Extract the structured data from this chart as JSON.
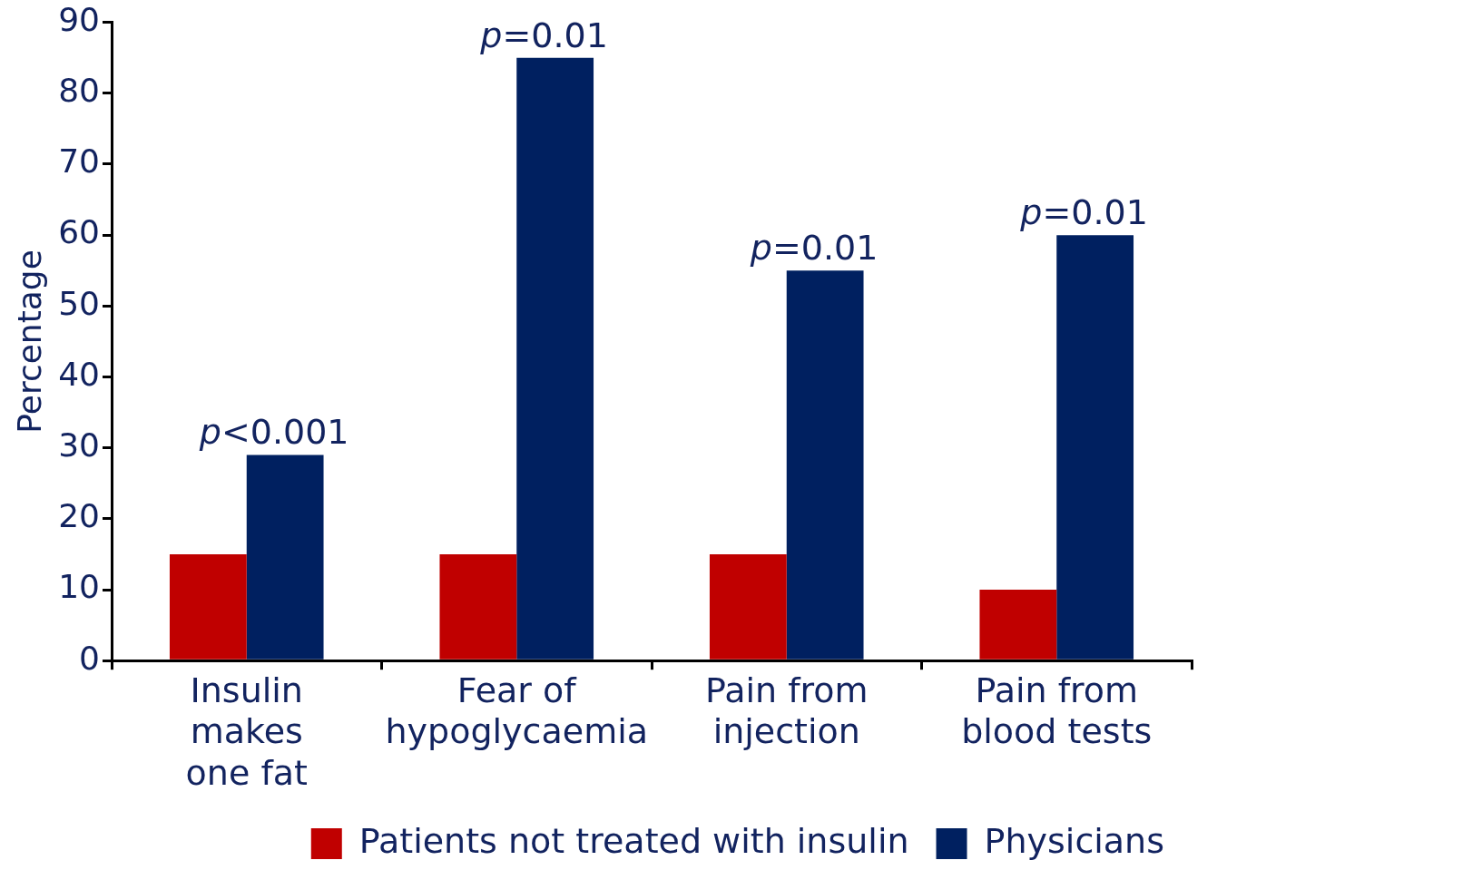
{
  "chart_data": {
    "type": "bar",
    "ylabel": "Percentage",
    "categories": [
      "Insulin\nmakes\none fat",
      "Fear of\nhypoglycaemia",
      "Pain from\ninjection",
      "Pain from\nblood tests"
    ],
    "series": [
      {
        "name": "Patients not treated with insulin",
        "color": "#c00000",
        "values": [
          15,
          15,
          15,
          10
        ]
      },
      {
        "name": "Physicians",
        "color": "#002060",
        "values": [
          29,
          85,
          55,
          60
        ]
      }
    ],
    "ylim": [
      0,
      90
    ],
    "yticks": [
      0,
      10,
      20,
      30,
      40,
      50,
      60,
      70,
      80,
      90
    ],
    "grid": false,
    "legend": "bottom right",
    "annotations": [
      {
        "text": "p<0.001",
        "x": "Insulin\nmakes\none fat",
        "y": 29
      },
      {
        "text": "p=0.01",
        "x": "Fear of\nhypoglycaemia",
        "y": 85
      },
      {
        "text": "p=0.01",
        "x": "Pain from\ninjection",
        "y": 55
      },
      {
        "text": "p=0.01",
        "x": "Pain from\nblood tests",
        "y": 60
      }
    ]
  }
}
